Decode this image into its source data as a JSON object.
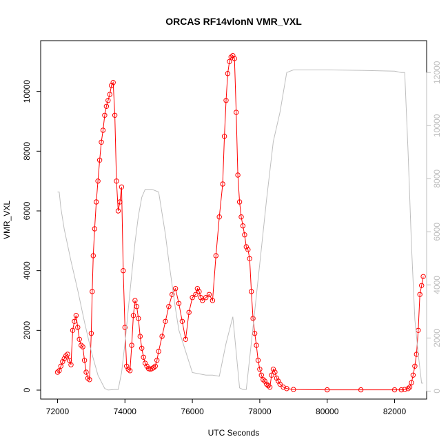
{
  "chart_data": {
    "type": "line",
    "title": "ORCAS RF14vlonN VMR_VXL",
    "xlabel": "UTC Seconds",
    "ylabel": "VMR_VXL",
    "xlim": [
      71500,
      82950
    ],
    "ylim": [
      -300,
      11700
    ],
    "y2lim": [
      -300,
      13200
    ],
    "xticks": [
      "72000",
      "74000",
      "76000",
      "78000",
      "80000",
      "82000"
    ],
    "yticks": [
      "0",
      "2000",
      "4000",
      "6000",
      "8000",
      "10000"
    ],
    "y2ticks": [
      "0",
      "2000",
      "4000",
      "6000",
      "8000",
      "10000",
      "12000"
    ],
    "grid": false,
    "series": [
      {
        "color": "#ff0000",
        "marker": "open-circle",
        "axis": "left",
        "x": [
          72000,
          72050,
          72100,
          72150,
          72200,
          72250,
          72300,
          72350,
          72400,
          72450,
          72500,
          72550,
          72600,
          72650,
          72700,
          72750,
          72800,
          72850,
          72900,
          72950,
          73000,
          73030,
          73060,
          73100,
          73150,
          73200,
          73250,
          73300,
          73350,
          73400,
          73450,
          73500,
          73550,
          73600,
          73650,
          73700,
          73750,
          73800,
          73850,
          73900,
          73950,
          74000,
          74050,
          74100,
          74150,
          74200,
          74250,
          74300,
          74350,
          74400,
          74450,
          74500,
          74550,
          74600,
          74650,
          74700,
          74750,
          74800,
          74850,
          74900,
          74950,
          75000,
          75100,
          75200,
          75300,
          75400,
          75500,
          75600,
          75700,
          75800,
          75900,
          76000,
          76100,
          76150,
          76200,
          76250,
          76300,
          76400,
          76500,
          76600,
          76700,
          76800,
          76900,
          76950,
          77000,
          77050,
          77100,
          77150,
          77200,
          77250,
          77300,
          77350,
          77400,
          77450,
          77500,
          77550,
          77600,
          77650,
          77700,
          77750,
          77800,
          77850,
          77900,
          77950,
          78000,
          78050,
          78100,
          78150,
          78200,
          78250,
          78300,
          78350,
          78400,
          78450,
          78500,
          78550,
          78600,
          78700,
          78800,
          79000,
          80000,
          81000,
          82000,
          82200,
          82300,
          82400,
          82450,
          82500,
          82550,
          82600,
          82650,
          82700,
          82750,
          82800,
          82850
        ],
        "values": [
          600,
          650,
          800,
          950,
          1050,
          1150,
          1200,
          1000,
          850,
          2000,
          2300,
          2500,
          2100,
          1700,
          1500,
          1450,
          1000,
          600,
          400,
          350,
          1900,
          3300,
          4500,
          5400,
          6300,
          7000,
          7700,
          8300,
          8700,
          9200,
          9500,
          9700,
          9900,
          10200,
          10300,
          9200,
          7000,
          6000,
          6300,
          6800,
          4000,
          2100,
          800,
          700,
          650,
          1500,
          2500,
          3000,
          2800,
          2400,
          1800,
          1400,
          1100,
          900,
          800,
          720,
          700,
          720,
          750,
          800,
          1000,
          1300,
          1800,
          2300,
          2800,
          3200,
          3400,
          2900,
          2300,
          1700,
          2600,
          3100,
          3200,
          3400,
          3300,
          3100,
          3000,
          3100,
          3200,
          3000,
          4500,
          5800,
          6900,
          8500,
          9700,
          10600,
          11000,
          11150,
          11200,
          11100,
          9300,
          7200,
          6300,
          5800,
          5500,
          5200,
          4800,
          4700,
          4400,
          3300,
          2400,
          1900,
          1500,
          1000,
          700,
          500,
          350,
          300,
          200,
          150,
          100,
          500,
          700,
          600,
          400,
          300,
          200,
          100,
          50,
          20,
          10,
          10,
          10,
          10,
          20,
          50,
          100,
          250,
          500,
          800,
          1200,
          2000,
          3200,
          3500,
          3800
        ]
      },
      {
        "color": "#bebebe",
        "axis": "right",
        "x": [
          72000,
          72050,
          72100,
          72200,
          72400,
          72600,
          72800,
          73000,
          73200,
          73400,
          73500,
          73600,
          73700,
          73750,
          73800,
          73900,
          74000,
          74100,
          74200,
          74300,
          74400,
          74500,
          74600,
          74700,
          74800,
          74900,
          75000,
          75200,
          75300,
          75400,
          75500,
          75600,
          75800,
          76000,
          76200,
          76400,
          76600,
          76800,
          77000,
          77200,
          77400,
          77500,
          77600,
          77800,
          78000,
          78200,
          78400,
          78600,
          78800,
          79000,
          80000,
          81000,
          82000,
          82200,
          82300,
          82400,
          82500,
          82600,
          82700,
          82800,
          82850
        ],
        "values": [
          7500,
          7500,
          6900,
          6100,
          4900,
          3800,
          2600,
          1500,
          600,
          100,
          40,
          50,
          60,
          60,
          60,
          700,
          1800,
          3100,
          4400,
          5600,
          6600,
          7300,
          7600,
          7600,
          7600,
          7550,
          7500,
          5900,
          4900,
          4000,
          3100,
          2300,
          1500,
          700,
          650,
          600,
          600,
          560,
          1800,
          2800,
          120,
          60,
          60,
          2400,
          4800,
          7200,
          9400,
          10500,
          12000,
          12100,
          12100,
          12080,
          12050,
          12000,
          12000,
          9000,
          5500,
          2700,
          1400,
          300,
          300
        ]
      }
    ]
  }
}
